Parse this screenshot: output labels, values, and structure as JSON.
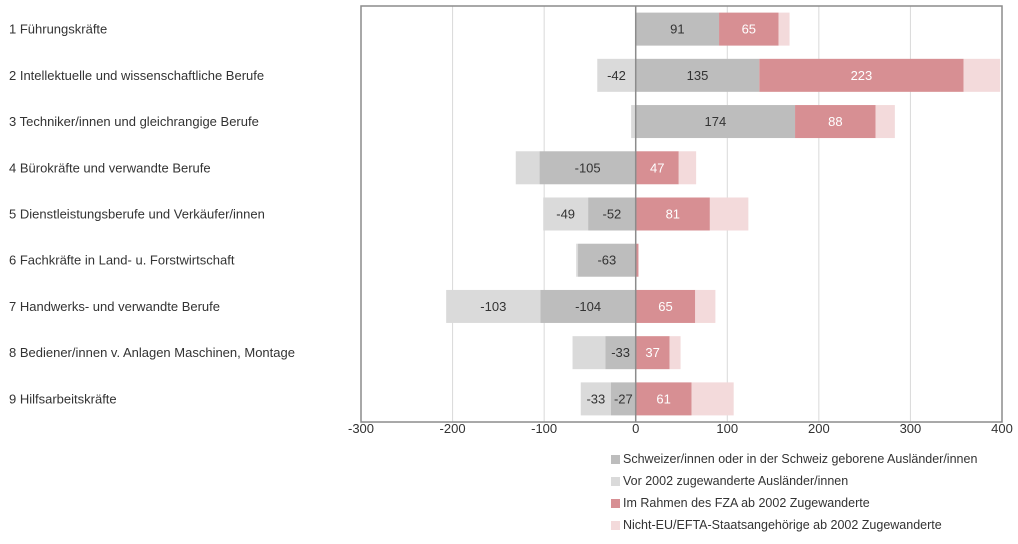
{
  "chart_data": {
    "type": "bar",
    "orientation": "horizontal",
    "stacked": true,
    "title": "",
    "xlabel": "",
    "ylabel": "",
    "xlim": [
      -300,
      400
    ],
    "xticks": [
      -300,
      -200,
      -100,
      0,
      100,
      200,
      300,
      400
    ],
    "grid": true,
    "legend_position": "bottom-right",
    "categories": [
      "1 Führungskräfte",
      "2 Intellektuelle und wissenschaftliche Berufe",
      "3 Techniker/innen und gleichrangige Berufe",
      "4 Bürokräfte und verwandte Berufe",
      "5 Dienstleistungsberufe und Verkäufer/innen",
      "6 Fachkräfte in Land- u. Forstwirtschaft",
      "7 Handwerks- und verwandte Berufe",
      "8 Bediener/innen v. Anlagen Maschinen, Montage",
      "9 Hilfsarbeitskräfte"
    ],
    "series": [
      {
        "name": "Schweizer/innen oder in der Schweiz geborene Ausländer/innen",
        "color": "#bdbdbd",
        "label_color": "#333333",
        "values": [
          91,
          135,
          174,
          -105,
          -52,
          -63,
          -104,
          -33,
          -27
        ],
        "show_labels": [
          true,
          true,
          true,
          true,
          true,
          true,
          true,
          true,
          true
        ]
      },
      {
        "name": "Vor 2002 zugewanderte Ausländer/innen",
        "color": "#dadada",
        "label_color": "#333333",
        "values": [
          0,
          -42,
          -5,
          -26,
          -49,
          -2,
          -103,
          -36,
          -33
        ],
        "show_labels": [
          false,
          true,
          false,
          false,
          true,
          false,
          true,
          false,
          true
        ]
      },
      {
        "name": "Im Rahmen des FZA ab 2002 Zugewanderte",
        "color": "#d78f93",
        "label_color": "#ffffff",
        "values": [
          65,
          223,
          88,
          47,
          81,
          3,
          65,
          37,
          61
        ],
        "show_labels": [
          true,
          true,
          true,
          true,
          true,
          false,
          true,
          true,
          true
        ]
      },
      {
        "name": "Nicht-EU/EFTA-Staatsangehörige ab 2002 Zugewanderte",
        "color": "#f3dadb",
        "label_color": "#333333",
        "values": [
          12,
          40,
          21,
          19,
          42,
          0,
          22,
          12,
          46
        ],
        "show_labels": [
          false,
          false,
          false,
          false,
          false,
          false,
          false,
          false,
          false
        ]
      }
    ]
  },
  "colors": {
    "frame": "#8c8c8c",
    "gridline": "#d9d9d9",
    "zero_line": "#8c8c8c"
  }
}
